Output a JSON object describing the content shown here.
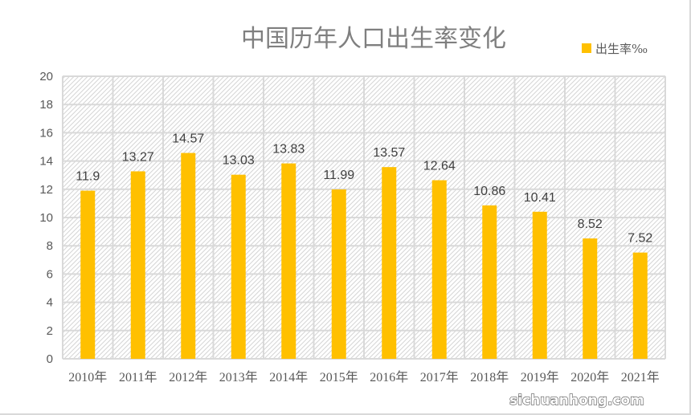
{
  "chart_data": {
    "type": "bar",
    "title": "中国历年人口出生率变化",
    "categories": [
      "2010年",
      "2011年",
      "2012年",
      "2013年",
      "2014年",
      "2015年",
      "2016年",
      "2017年",
      "2018年",
      "2019年",
      "2020年",
      "2021年"
    ],
    "series": [
      {
        "name": "出生率‰",
        "values": [
          11.9,
          13.27,
          14.57,
          13.03,
          13.83,
          11.99,
          13.57,
          12.64,
          10.86,
          10.41,
          8.52,
          7.52
        ],
        "color": "#FFC000"
      }
    ],
    "xlabel": "",
    "ylabel": "",
    "ylim": [
      0,
      20
    ],
    "yticks": [
      0,
      2,
      4,
      6,
      8,
      10,
      12,
      14,
      16,
      18,
      20
    ],
    "grid": true,
    "legend": "top-right",
    "data_labels": true
  },
  "watermark": "sichuanhong.com"
}
